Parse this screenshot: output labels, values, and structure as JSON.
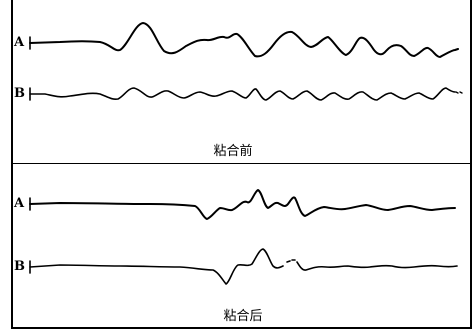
{
  "panels": [
    {
      "caption": "粘合前",
      "traces": [
        {
          "label": "A"
        },
        {
          "label": "B"
        }
      ]
    },
    {
      "caption": "粘合后",
      "traces": [
        {
          "label": "A"
        },
        {
          "label": "B"
        }
      ]
    }
  ]
}
